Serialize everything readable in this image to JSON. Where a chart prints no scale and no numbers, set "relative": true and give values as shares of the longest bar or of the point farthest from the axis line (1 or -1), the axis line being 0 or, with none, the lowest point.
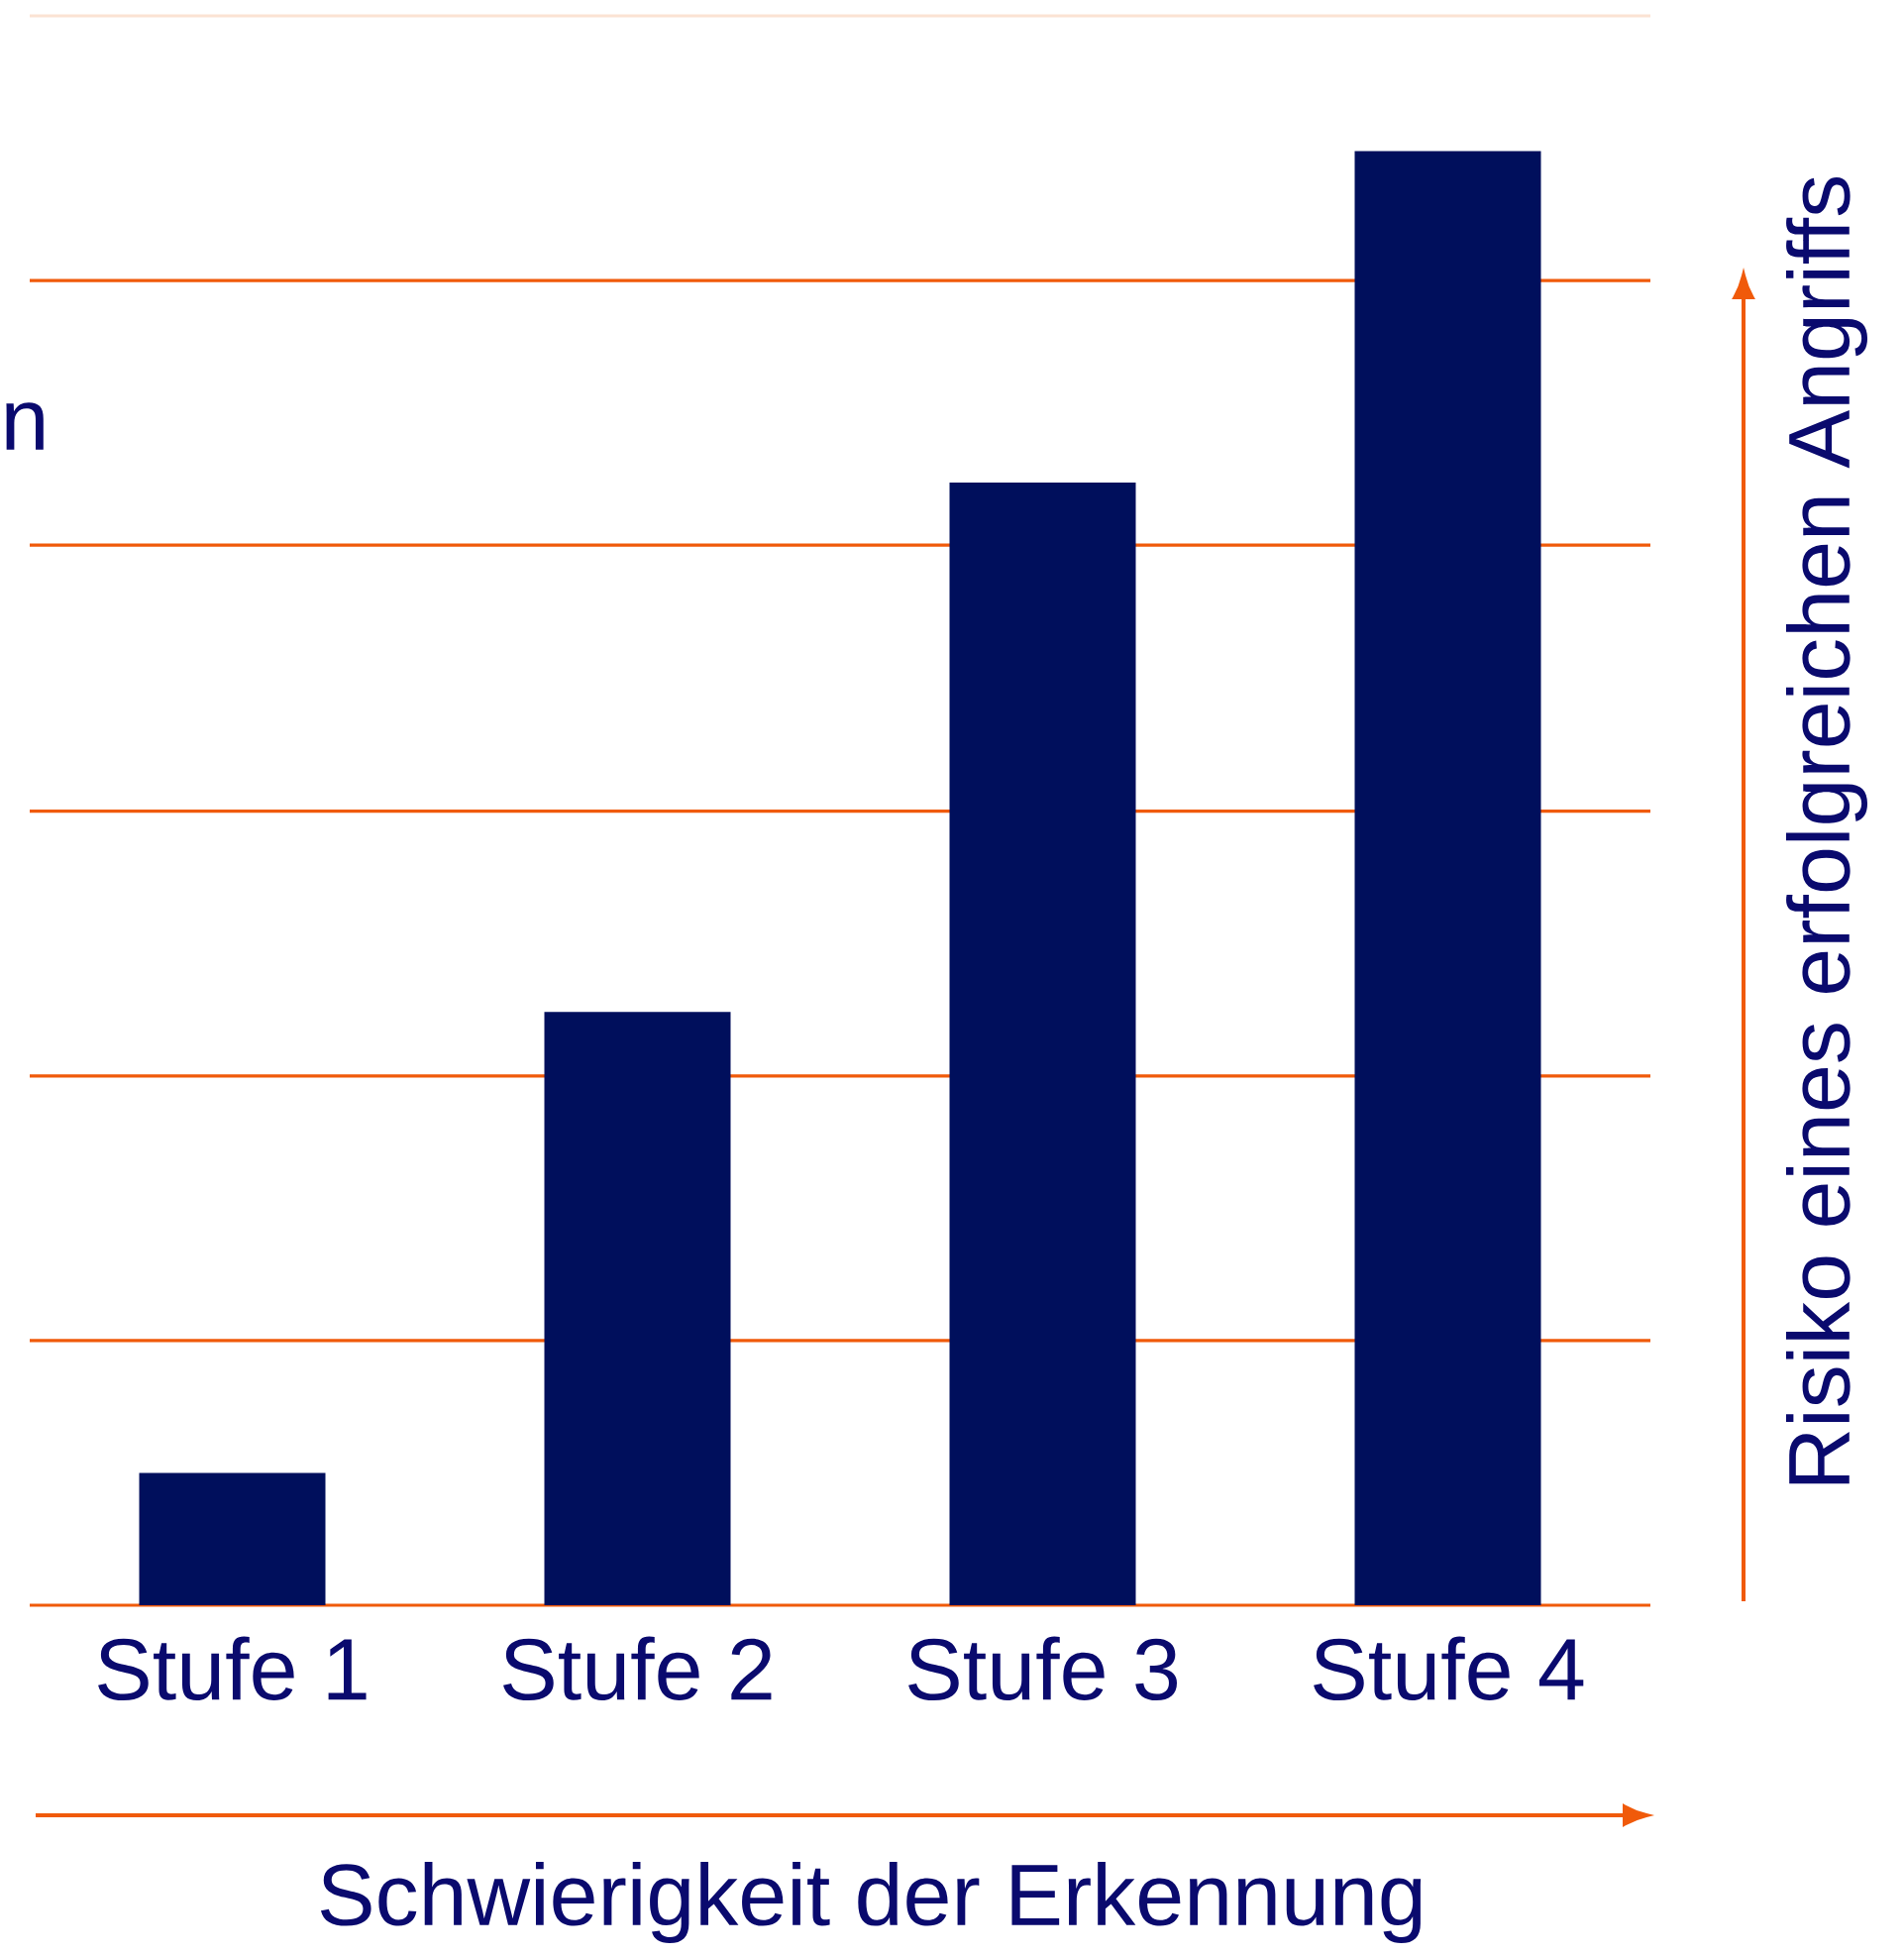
{
  "chart_data": {
    "type": "bar",
    "relative": true,
    "categories": [
      "Stufe 1",
      "Stufe 2",
      "Stufe 3",
      "Stufe 4"
    ],
    "values": [
      0.091,
      0.408,
      0.772,
      1
    ],
    "color": "#000f5c",
    "xlabel": "Schwierigkeit der Erkennung",
    "ylabel": "Risiko eines erfolgreichen Angriffs",
    "annotations": [
      "n"
    ],
    "ref_lines": [
      {
        "axis": "y",
        "value": 0,
        "color": "#f05a0a"
      },
      {
        "axis": "y",
        "value": 0.182,
        "color": "#f05a0a"
      },
      {
        "axis": "y",
        "value": 0.364,
        "color": "#f05a0a"
      },
      {
        "axis": "y",
        "value": 0.546,
        "color": "#f05a0a"
      },
      {
        "axis": "y",
        "value": 0.729,
        "color": "#f05a0a"
      },
      {
        "axis": "y",
        "value": 0.911,
        "color": "#f05a0a"
      },
      {
        "axis": "y",
        "value": 1.093,
        "color": "#fbe3d3"
      }
    ]
  }
}
